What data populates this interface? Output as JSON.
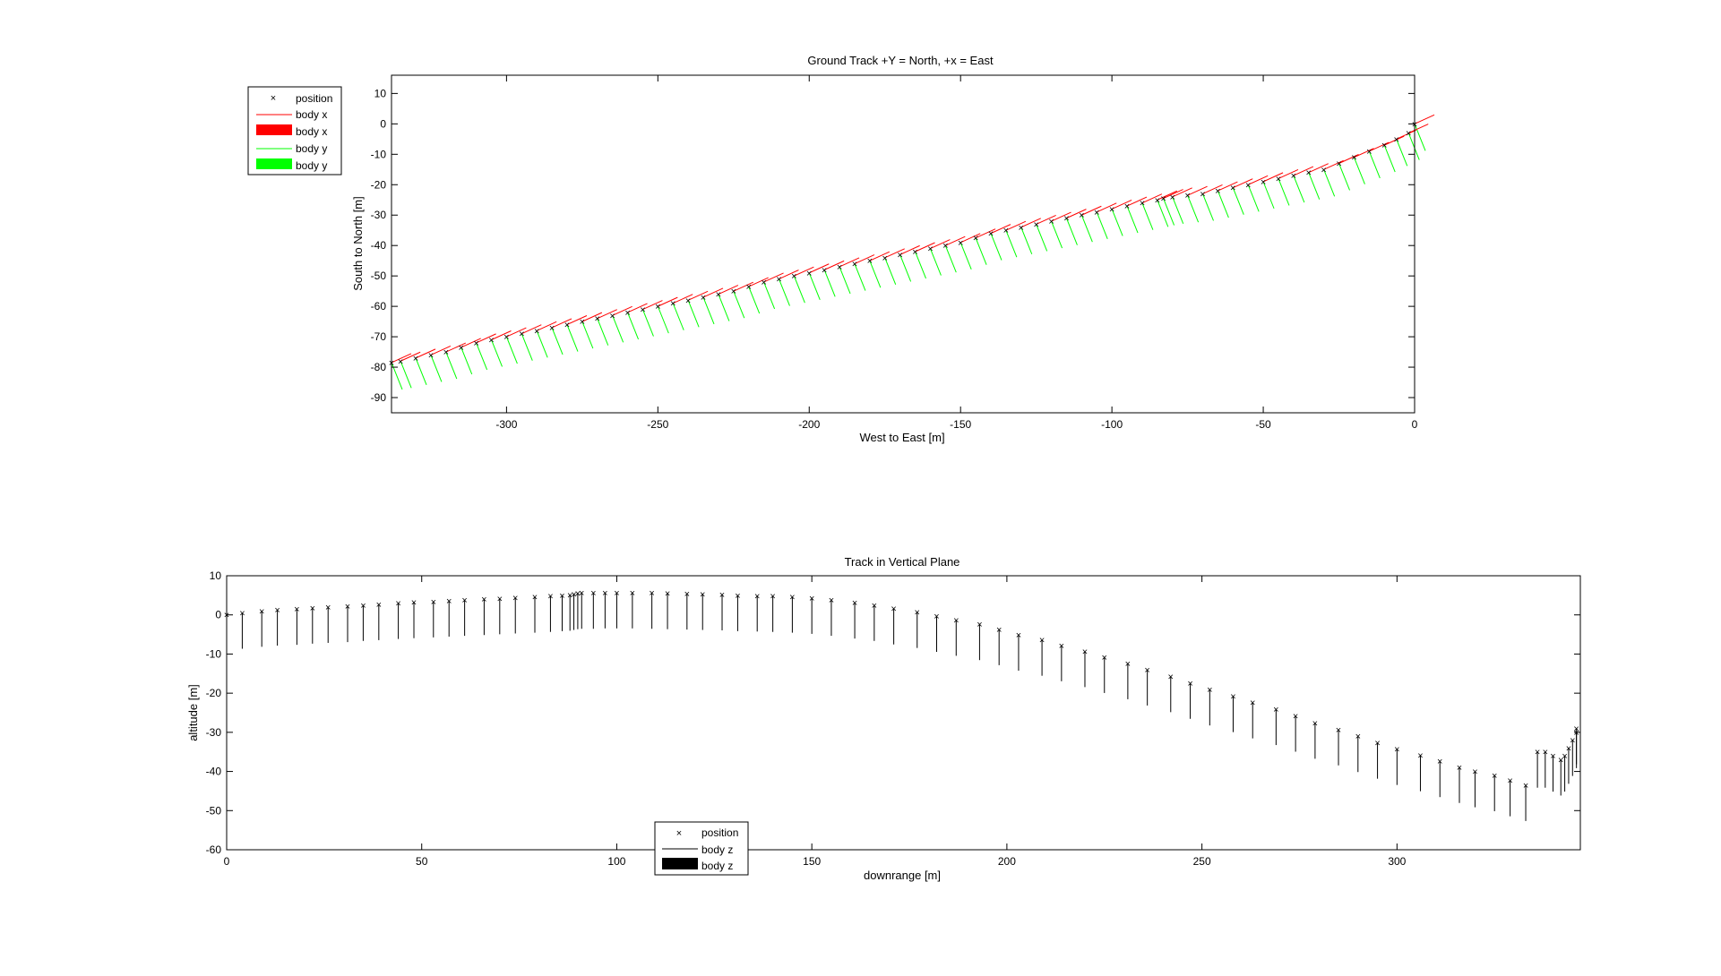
{
  "chart_data": [
    {
      "type": "scatter",
      "title": "Ground Track +Y = North, +x = East",
      "xlabel": "West to East [m]",
      "ylabel": "South to North [m]",
      "xlim": [
        -338,
        0
      ],
      "ylim": [
        -95,
        16
      ],
      "xticks": [
        -300,
        -250,
        -200,
        -150,
        -100,
        -50,
        0
      ],
      "yticks": [
        10,
        0,
        -10,
        -20,
        -30,
        -40,
        -50,
        -60,
        -70,
        -80,
        -90
      ],
      "grid": false,
      "legend_position": "outside-top-left",
      "legend": [
        {
          "label": "position",
          "style": "marker-x",
          "color": "#1a1aa8"
        },
        {
          "label": "body x",
          "style": "thin-line",
          "color": "#ff0000"
        },
        {
          "label": "body x",
          "style": "thick-patch",
          "color": "#ff0000"
        },
        {
          "label": "body y",
          "style": "thin-line",
          "color": "#00ff00"
        },
        {
          "label": "body y",
          "style": "thick-patch",
          "color": "#00ff00"
        }
      ],
      "series": [
        {
          "kind": "position",
          "marker": "x",
          "color": "#1a1aa8",
          "points": [
            [
              0,
              0
            ],
            [
              -2,
              -3
            ],
            [
              -6,
              -5
            ],
            [
              -10,
              -7
            ],
            [
              -15,
              -9
            ],
            [
              -20,
              -11
            ],
            [
              -25,
              -13
            ],
            [
              -30,
              -15
            ],
            [
              -35,
              -16
            ],
            [
              -40,
              -17
            ],
            [
              -45,
              -18
            ],
            [
              -50,
              -19
            ],
            [
              -55,
              -20
            ],
            [
              -60,
              -21
            ],
            [
              -65,
              -22
            ],
            [
              -70,
              -23
            ],
            [
              -75,
              -23.5
            ],
            [
              -80,
              -24
            ],
            [
              -83,
              -24.5
            ],
            [
              -85,
              -25
            ],
            [
              -90,
              -26
            ],
            [
              -95,
              -27
            ],
            [
              -100,
              -28
            ],
            [
              -105,
              -29
            ],
            [
              -110,
              -30
            ],
            [
              -115,
              -31
            ],
            [
              -120,
              -32
            ],
            [
              -125,
              -33
            ],
            [
              -130,
              -34
            ],
            [
              -135,
              -35
            ],
            [
              -140,
              -36
            ],
            [
              -145,
              -37.5
            ],
            [
              -150,
              -39
            ],
            [
              -155,
              -40
            ],
            [
              -160,
              -41
            ],
            [
              -165,
              -42
            ],
            [
              -170,
              -43
            ],
            [
              -175,
              -44
            ],
            [
              -180,
              -45
            ],
            [
              -185,
              -46
            ],
            [
              -190,
              -47
            ],
            [
              -195,
              -48
            ],
            [
              -200,
              -49
            ],
            [
              -205,
              -50
            ],
            [
              -210,
              -51
            ],
            [
              -215,
              -52
            ],
            [
              -220,
              -53.5
            ],
            [
              -225,
              -55
            ],
            [
              -230,
              -56
            ],
            [
              -235,
              -57
            ],
            [
              -240,
              -58
            ],
            [
              -245,
              -59
            ],
            [
              -250,
              -60
            ],
            [
              -255,
              -61
            ],
            [
              -260,
              -62
            ],
            [
              -265,
              -63
            ],
            [
              -270,
              -64
            ],
            [
              -275,
              -65
            ],
            [
              -280,
              -66
            ],
            [
              -285,
              -67
            ],
            [
              -290,
              -68
            ],
            [
              -295,
              -69
            ],
            [
              -300,
              -70
            ],
            [
              -305,
              -71
            ],
            [
              -310,
              -72
            ],
            [
              -315,
              -73.5
            ],
            [
              -320,
              -75
            ],
            [
              -325,
              -76
            ],
            [
              -330,
              -77
            ],
            [
              -335,
              -78
            ],
            [
              -338,
              -78.5
            ]
          ]
        }
      ]
    },
    {
      "type": "scatter",
      "title": "Track in Vertical Plane",
      "xlabel": "downrange [m]",
      "ylabel": "altitude [m]",
      "xlim": [
        0,
        347
      ],
      "ylim": [
        -60,
        10
      ],
      "xticks": [
        0,
        50,
        100,
        150,
        200,
        250,
        300
      ],
      "yticks": [
        10,
        0,
        -10,
        -20,
        -30,
        -40,
        -50,
        -60
      ],
      "grid": false,
      "legend_position": "bottom-left-inside",
      "legend": [
        {
          "label": "position",
          "style": "marker-x",
          "color": "#1a1aa8"
        },
        {
          "label": "body z",
          "style": "thin-line",
          "color": "#000000"
        },
        {
          "label": "body z",
          "style": "thick-patch",
          "color": "#000000"
        }
      ],
      "series": [
        {
          "kind": "position",
          "marker": "x",
          "color": "#1a1aa8",
          "points": [
            [
              0,
              0
            ],
            [
              4,
              0.5
            ],
            [
              9,
              1
            ],
            [
              13,
              1.3
            ],
            [
              18,
              1.5
            ],
            [
              22,
              1.8
            ],
            [
              26,
              2
            ],
            [
              31,
              2.2
            ],
            [
              35,
              2.5
            ],
            [
              39,
              2.7
            ],
            [
              44,
              3
            ],
            [
              48,
              3.2
            ],
            [
              53,
              3.4
            ],
            [
              57,
              3.6
            ],
            [
              61,
              3.8
            ],
            [
              66,
              4
            ],
            [
              70,
              4.2
            ],
            [
              74,
              4.4
            ],
            [
              79,
              4.6
            ],
            [
              83,
              4.8
            ],
            [
              86,
              5
            ],
            [
              88,
              5.1
            ],
            [
              89,
              5.3
            ],
            [
              90,
              5.5
            ],
            [
              91,
              5.6
            ],
            [
              94,
              5.6
            ],
            [
              97,
              5.7
            ],
            [
              100,
              5.7
            ],
            [
              104,
              5.7
            ],
            [
              109,
              5.6
            ],
            [
              113,
              5.5
            ],
            [
              118,
              5.4
            ],
            [
              122,
              5.3
            ],
            [
              127,
              5.2
            ],
            [
              131,
              5
            ],
            [
              136,
              4.9
            ],
            [
              140,
              4.8
            ],
            [
              145,
              4.6
            ],
            [
              150,
              4.3
            ],
            [
              155,
              3.8
            ],
            [
              161,
              3.1
            ],
            [
              166,
              2.5
            ],
            [
              171,
              1.6
            ],
            [
              177,
              0.7
            ],
            [
              182,
              -0.3
            ],
            [
              187,
              -1.3
            ],
            [
              193,
              -2.4
            ],
            [
              198,
              -3.7
            ],
            [
              203,
              -5.1
            ],
            [
              209,
              -6.4
            ],
            [
              214,
              -7.8
            ],
            [
              220,
              -9.3
            ],
            [
              225,
              -10.8
            ],
            [
              231,
              -12.4
            ],
            [
              236,
              -14
            ],
            [
              242,
              -15.7
            ],
            [
              247,
              -17.4
            ],
            [
              252,
              -19.1
            ],
            [
              258,
              -20.8
            ],
            [
              263,
              -22.4
            ],
            [
              269,
              -24.1
            ],
            [
              274,
              -25.8
            ],
            [
              279,
              -27.6
            ],
            [
              285,
              -29.3
            ],
            [
              290,
              -31
            ],
            [
              295,
              -32.7
            ],
            [
              300,
              -34.3
            ],
            [
              306,
              -35.9
            ],
            [
              311,
              -37.4
            ],
            [
              316,
              -38.9
            ],
            [
              320,
              -40
            ],
            [
              325,
              -41
            ],
            [
              329,
              -42.3
            ],
            [
              333,
              -43.5
            ],
            [
              336,
              -35
            ],
            [
              338,
              -35
            ],
            [
              340,
              -36
            ],
            [
              342,
              -37
            ],
            [
              343,
              -36
            ],
            [
              344,
              -34
            ],
            [
              345,
              -32
            ],
            [
              346,
              -30
            ],
            [
              346,
              -29
            ]
          ]
        }
      ]
    }
  ]
}
